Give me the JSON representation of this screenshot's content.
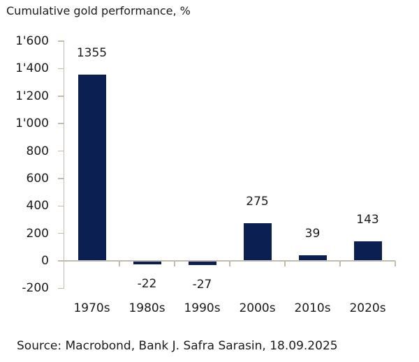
{
  "title": "Cumulative gold performance, %",
  "source": "Source: Macrobond, Bank J. Safra Sarasin, 18.09.2025",
  "colors": {
    "bar": "#0b1f52",
    "axis": "#c1bbb1",
    "text": "#1a1a1a",
    "background": "#ffffff"
  },
  "chart_data": {
    "type": "bar",
    "title": "Cumulative gold performance, %",
    "categories": [
      "1970s",
      "1980s",
      "1990s",
      "2000s",
      "2010s",
      "2020s"
    ],
    "values": [
      1355,
      -22,
      -27,
      275,
      39,
      143
    ],
    "data_labels": [
      1355,
      -22,
      -27,
      275,
      39,
      143
    ],
    "xlabel": "",
    "ylabel": "Cumulative gold performance, %",
    "ylim": [
      -200,
      1600
    ],
    "ytick_step": 200,
    "yticks": [
      {
        "label": "1'600",
        "value": 1600
      },
      {
        "label": "1'400",
        "value": 1400
      },
      {
        "label": "1'200",
        "value": 1200
      },
      {
        "label": "1'000",
        "value": 1000
      },
      {
        "label": "800",
        "value": 800
      },
      {
        "label": "600",
        "value": 600
      },
      {
        "label": "400",
        "value": 400
      },
      {
        "label": "200",
        "value": 200
      },
      {
        "label": "0",
        "value": 0
      },
      {
        "label": "-200",
        "value": -200
      }
    ],
    "grid": false,
    "legend": "none",
    "bar_color": "#0b1f52"
  }
}
